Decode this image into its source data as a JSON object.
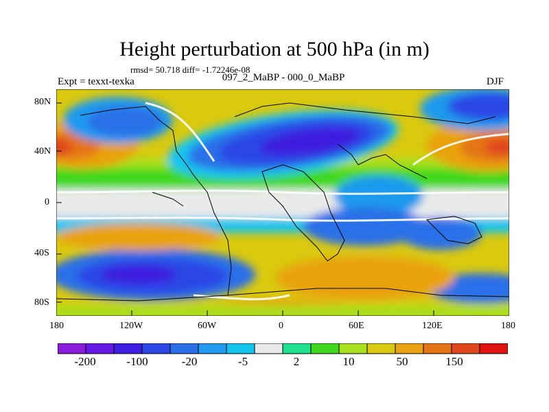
{
  "title": "Height perturbation at 500 hPa (in m)",
  "stats": "rmsd= 50.718 diff= -1.72246e-08",
  "experiment": "Expt = texxt-texka",
  "comparison": "097_2_MaBP - 000_0_MaBP",
  "season": "DJF",
  "map": {
    "lat_ticks": [
      "80N",
      "40N",
      "0",
      "40S",
      "80S"
    ],
    "lon_ticks": [
      "180",
      "120W",
      "60W",
      "0",
      "60E",
      "120E",
      "180"
    ]
  },
  "colorbar": {
    "colors": [
      "#8a1cdc",
      "#6619e6",
      "#3c1fe0",
      "#2a47e6",
      "#2a6fe8",
      "#1f9aee",
      "#14c4ee",
      "#eaeaea",
      "#1fe08e",
      "#3fd81f",
      "#a8df1f",
      "#d9c90f",
      "#e9a211",
      "#e57419",
      "#e0461b",
      "#e11212"
    ],
    "labels": [
      "-200",
      "-100",
      "-20",
      "-5",
      "2",
      "10",
      "50",
      "150"
    ]
  }
}
